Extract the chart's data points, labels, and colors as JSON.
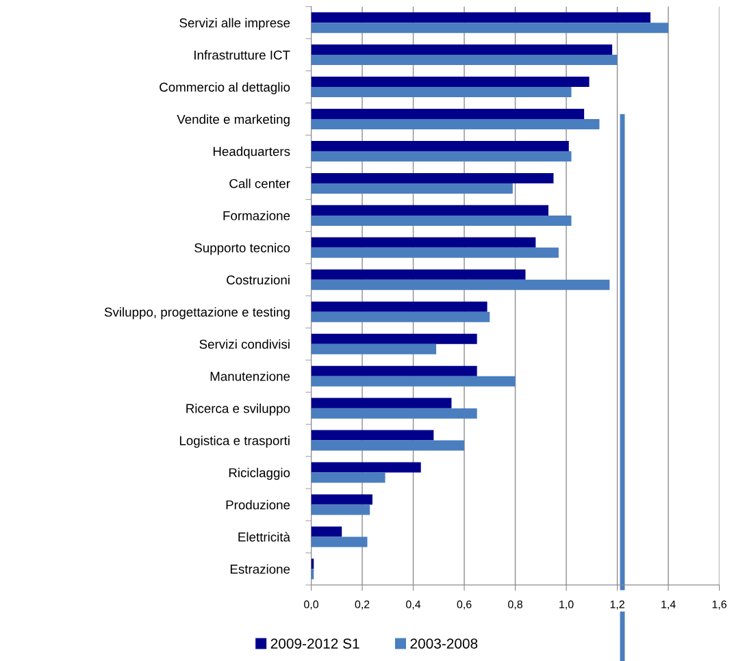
{
  "chart_data": {
    "type": "bar",
    "orientation": "horizontal",
    "categories": [
      "Servizi alle imprese",
      "Infrastrutture ICT",
      "Commercio al dettaglio",
      "Vendite e marketing",
      "Headquarters",
      "Call center",
      "Formazione",
      "Supporto tecnico",
      "Costruzioni",
      "Sviluppo, progettazione e testing",
      "Servizi condivisi",
      "Manutenzione",
      "Ricerca e sviluppo",
      "Logistica e trasporti",
      "Riciclaggio",
      "Produzione",
      "Elettricità",
      "Estrazione"
    ],
    "series": [
      {
        "name": "2009-2012 S1",
        "color": "#00008b",
        "values": [
          1.33,
          1.18,
          1.09,
          1.07,
          1.01,
          0.95,
          0.93,
          0.88,
          0.84,
          0.69,
          0.65,
          0.65,
          0.55,
          0.48,
          0.43,
          0.24,
          0.12,
          0.01
        ]
      },
      {
        "name": "2003-2008",
        "color": "#4a7ebf",
        "values": [
          1.4,
          1.2,
          1.02,
          1.13,
          1.02,
          0.79,
          1.02,
          0.97,
          1.17,
          0.7,
          0.49,
          0.8,
          0.65,
          0.6,
          0.29,
          0.23,
          0.22,
          0.01
        ]
      }
    ],
    "xlim": [
      0,
      1.6
    ],
    "xticks": [
      {
        "value": 0,
        "label": "0,0"
      },
      {
        "value": 0.2,
        "label": "0,2"
      },
      {
        "value": 0.4,
        "label": "0,4"
      },
      {
        "value": 0.6,
        "label": "0,6"
      },
      {
        "value": 0.8,
        "label": "0,8"
      },
      {
        "value": 1.0,
        "label": "1,0"
      },
      {
        "value": 1.2,
        "label": "1,2"
      },
      {
        "value": 1.4,
        "label": "1,4"
      },
      {
        "value": 1.6,
        "label": "1,6"
      }
    ],
    "ref_lines": [
      {
        "axis": "x",
        "value": 1.22,
        "label": null,
        "color": "#4a7ebf"
      }
    ],
    "grid": "x",
    "legend": "bottom"
  }
}
